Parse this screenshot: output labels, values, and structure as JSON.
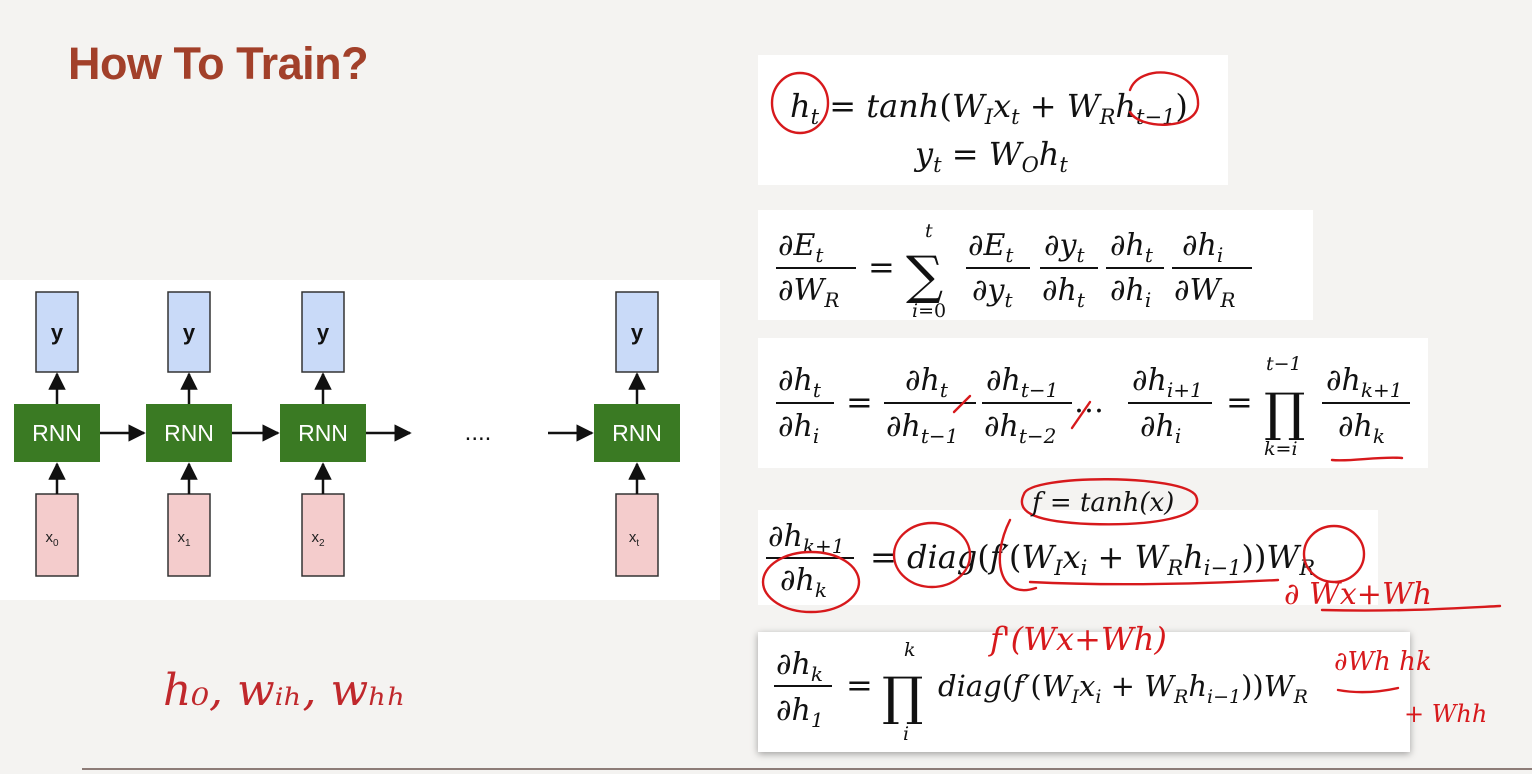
{
  "title": "How To Train?",
  "diagram": {
    "output_label": "y",
    "cell_label": "RNN",
    "ellipsis": "....",
    "inputs": [
      {
        "base": "x",
        "sub": "0"
      },
      {
        "base": "x",
        "sub": "1"
      },
      {
        "base": "x",
        "sub": "2"
      },
      {
        "base": "x",
        "sub": "t"
      }
    ]
  },
  "params": "h₀, wᵢₕ, wₕₕ",
  "colors": {
    "title": "#a2402a",
    "rnn_cell": "#3a7a23",
    "output_box": "#c9daf8",
    "input_box": "#f4cccc",
    "annotation": "#d7191c"
  },
  "handwritten": {
    "f_def": "f = tanh(x)",
    "deriv_guess": "f'(Wx+Wh)",
    "partial_num": "∂ Wx+Wh",
    "partial_den": "∂Wh hk",
    "tail": "+ Whh"
  }
}
